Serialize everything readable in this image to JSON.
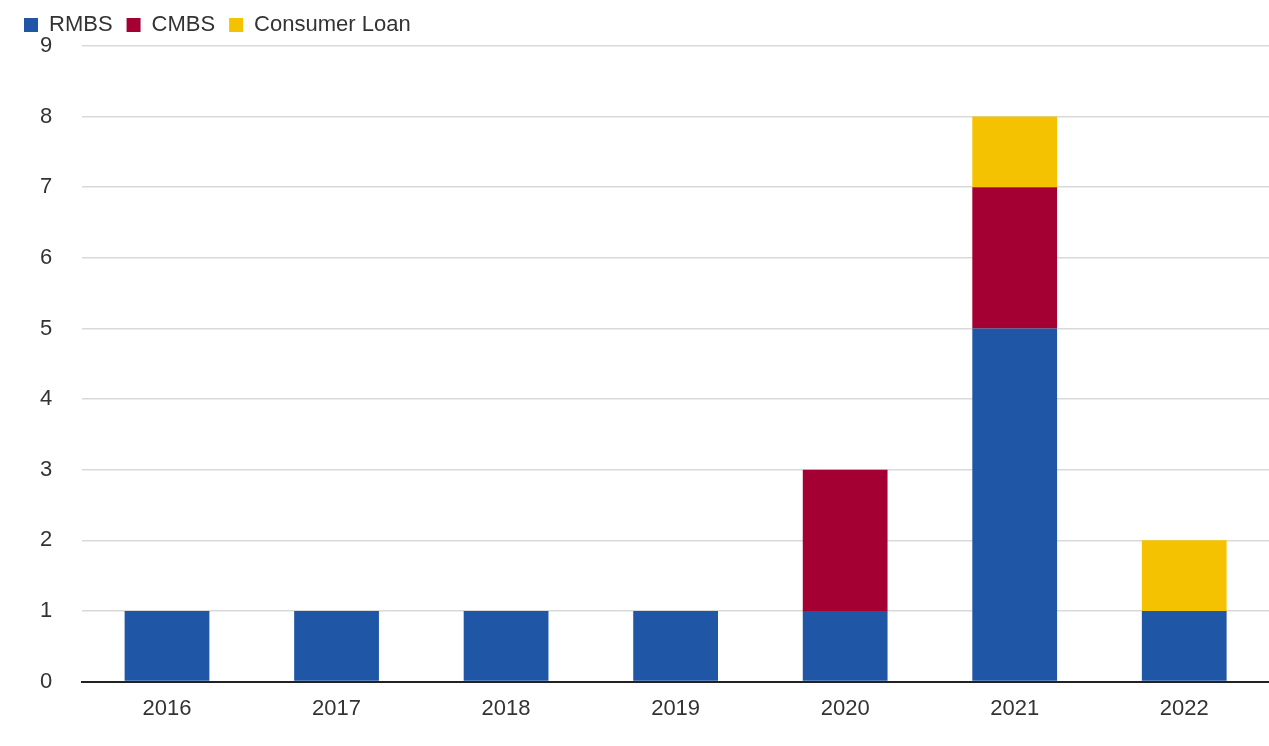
{
  "chart_data": {
    "type": "bar",
    "stacked": true,
    "categories": [
      "2016",
      "2017",
      "2018",
      "2019",
      "2020",
      "2021",
      "2022"
    ],
    "series": [
      {
        "name": "RMBS",
        "color": "#1f56a6",
        "values": [
          1,
          1,
          1,
          1,
          1,
          5,
          1
        ]
      },
      {
        "name": "CMBS",
        "color": "#a50034",
        "values": [
          0,
          0,
          0,
          0,
          2,
          2,
          0
        ]
      },
      {
        "name": "Consumer Loan",
        "color": "#f5c200",
        "values": [
          0,
          0,
          0,
          0,
          0,
          1,
          1
        ]
      }
    ],
    "ylim": [
      0,
      9
    ],
    "yticks": [
      0,
      1,
      2,
      3,
      4,
      5,
      6,
      7,
      8,
      9
    ],
    "grid": "y",
    "legend": "top left"
  }
}
